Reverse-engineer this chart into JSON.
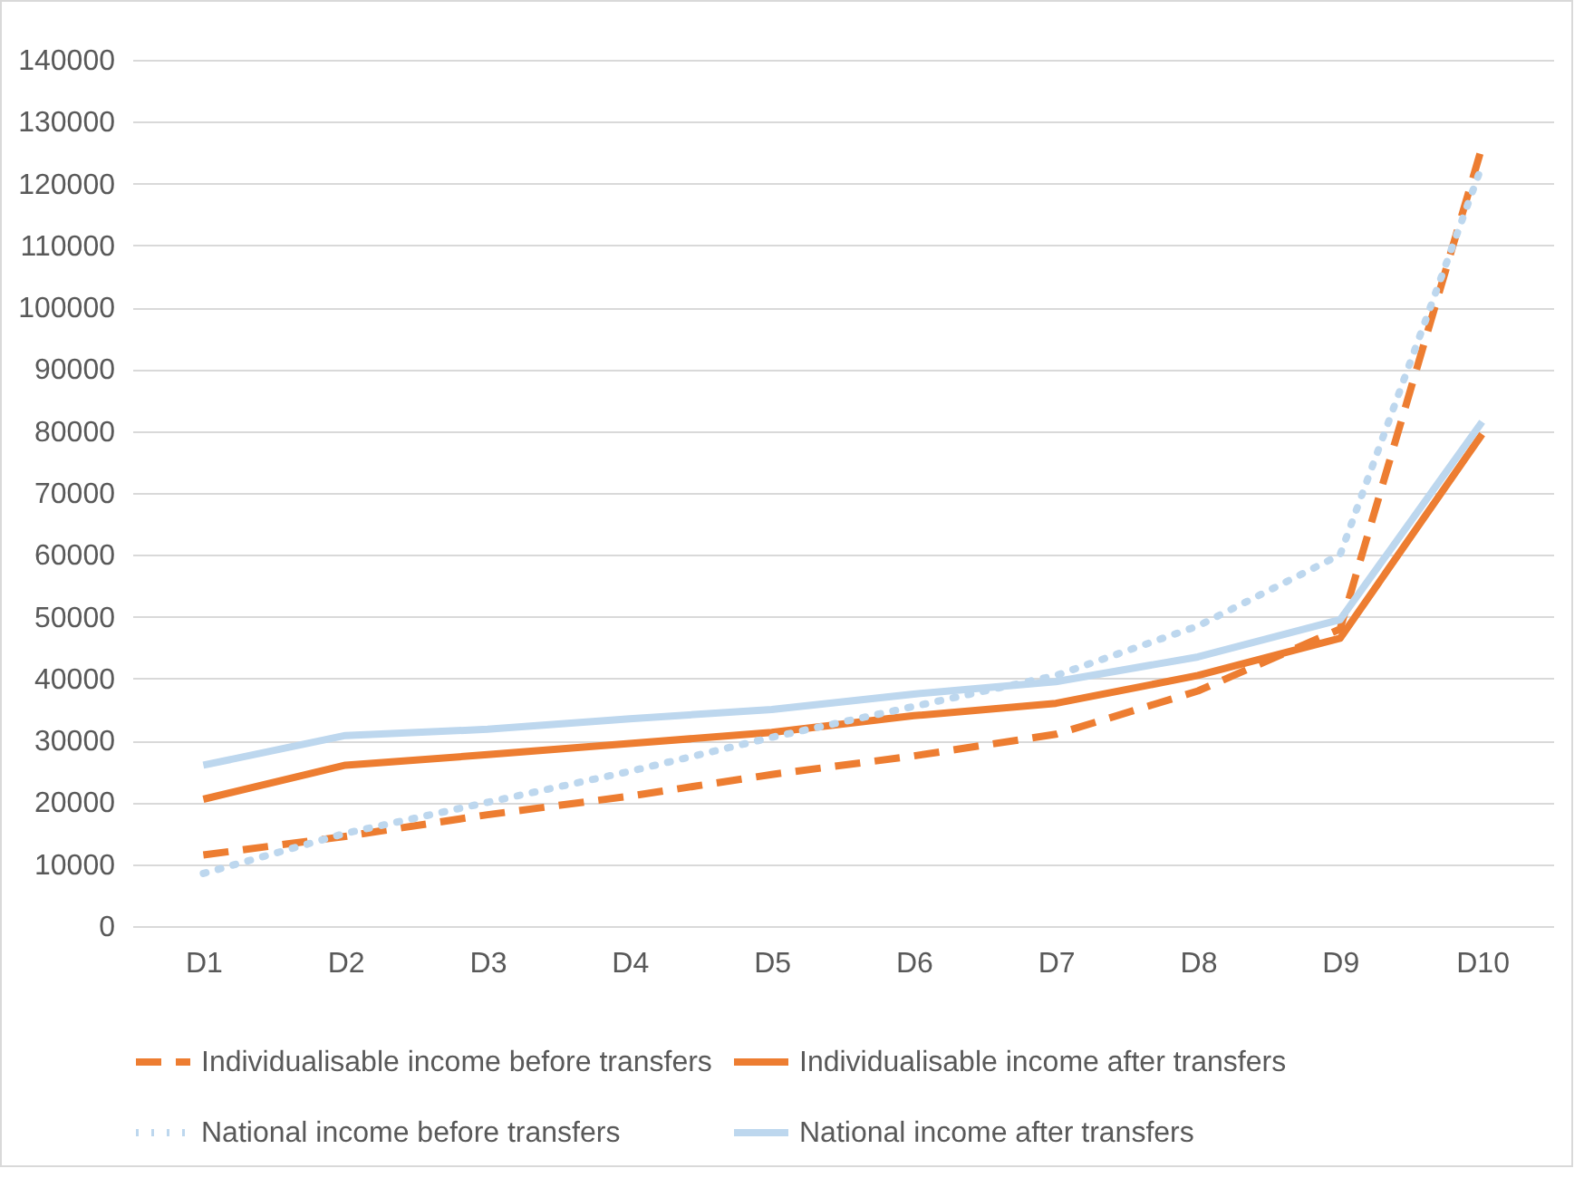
{
  "chart_data": {
    "type": "line",
    "categories": [
      "D1",
      "D2",
      "D3",
      "D4",
      "D5",
      "D6",
      "D7",
      "D8",
      "D9",
      "D10"
    ],
    "series": [
      {
        "name": "Individualisable income before transfers",
        "color": "#ed7d31",
        "line_style": "dashed",
        "values": [
          11500,
          14500,
          18000,
          21000,
          24500,
          27500,
          31000,
          38000,
          48000,
          126000
        ]
      },
      {
        "name": "Individualisable income after transfers",
        "color": "#ed7d31",
        "line_style": "solid",
        "values": [
          20500,
          26000,
          27700,
          29500,
          31300,
          34000,
          36000,
          40500,
          46500,
          79500
        ]
      },
      {
        "name": "National income before transfers",
        "color": "#bdd7ee",
        "line_style": "dotted",
        "values": [
          8500,
          15000,
          20000,
          25000,
          30500,
          35500,
          40500,
          48500,
          60000,
          123000
        ]
      },
      {
        "name": "National income after transfers",
        "color": "#bdd7ee",
        "line_style": "solid",
        "values": [
          26000,
          30800,
          31800,
          33500,
          35000,
          37500,
          39500,
          43500,
          49500,
          81500
        ]
      }
    ],
    "ylim": [
      0,
      140000
    ],
    "yticks": [
      0,
      10000,
      20000,
      30000,
      40000,
      50000,
      60000,
      70000,
      80000,
      90000,
      100000,
      110000,
      120000,
      130000,
      140000
    ],
    "grid": "y",
    "legend": "bottom",
    "marker": "none"
  }
}
